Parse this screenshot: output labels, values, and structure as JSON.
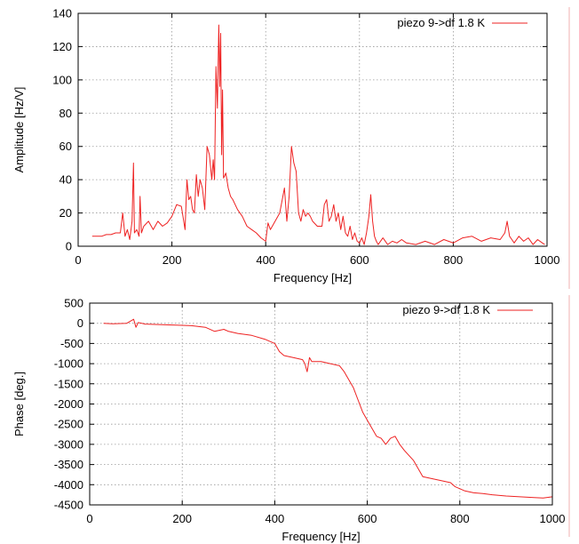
{
  "chart_data": [
    {
      "type": "line",
      "xlabel": "Frequency [Hz]",
      "ylabel": "Amplitude [Hz/V]",
      "xlim": [
        0,
        1000
      ],
      "ylim": [
        0,
        140
      ],
      "xticks": [
        "0",
        "200",
        "400",
        "600",
        "800",
        "1000"
      ],
      "yticks": [
        "0",
        "20",
        "40",
        "60",
        "80",
        "100",
        "120",
        "140"
      ],
      "grid": true,
      "legend_position": "top-right",
      "series": [
        {
          "name": "piezo 9->df 1.8 K",
          "color": "#ee2222",
          "x": [
            30,
            40,
            50,
            60,
            70,
            80,
            90,
            95,
            100,
            105,
            110,
            115,
            118,
            120,
            125,
            130,
            132,
            135,
            140,
            150,
            160,
            170,
            180,
            190,
            200,
            210,
            220,
            228,
            232,
            236,
            240,
            244,
            248,
            252,
            256,
            260,
            265,
            270,
            275,
            280,
            285,
            288,
            291,
            294,
            297,
            300,
            302,
            304,
            306,
            308,
            310,
            312,
            315,
            320,
            325,
            330,
            340,
            350,
            360,
            370,
            380,
            390,
            400,
            405,
            410,
            420,
            430,
            440,
            445,
            450,
            455,
            460,
            465,
            470,
            475,
            480,
            485,
            490,
            495,
            500,
            510,
            520,
            525,
            530,
            535,
            540,
            545,
            550,
            555,
            560,
            565,
            570,
            575,
            580,
            585,
            590,
            595,
            600,
            605,
            610,
            615,
            620,
            624,
            628,
            632,
            636,
            640,
            650,
            660,
            670,
            680,
            690,
            700,
            720,
            740,
            760,
            780,
            800,
            820,
            840,
            860,
            880,
            900,
            910,
            915,
            920,
            925,
            930,
            940,
            950,
            960,
            970,
            980,
            990,
            995
          ],
          "y": [
            6,
            6,
            6,
            7,
            7,
            8,
            8,
            20,
            6,
            10,
            4,
            15,
            50,
            8,
            10,
            6,
            30,
            8,
            12,
            15,
            10,
            15,
            12,
            14,
            18,
            25,
            24,
            10,
            40,
            28,
            30,
            22,
            20,
            43,
            30,
            40,
            35,
            22,
            60,
            55,
            40,
            52,
            40,
            108,
            83,
            133,
            96,
            128,
            55,
            94,
            41,
            42,
            44,
            35,
            30,
            28,
            22,
            18,
            12,
            10,
            8,
            5,
            3,
            14,
            10,
            15,
            20,
            35,
            15,
            30,
            60,
            50,
            45,
            20,
            15,
            22,
            18,
            20,
            18,
            15,
            12,
            12,
            25,
            28,
            15,
            18,
            25,
            15,
            20,
            10,
            18,
            8,
            6,
            12,
            4,
            8,
            3,
            2,
            5,
            1,
            8,
            18,
            31,
            15,
            6,
            3,
            1,
            5,
            1,
            3,
            2,
            4,
            2,
            1,
            3,
            1,
            4,
            2,
            5,
            6,
            3,
            5,
            4,
            8,
            15,
            6,
            4,
            2,
            6,
            3,
            5,
            1,
            4,
            2,
            1
          ]
        }
      ]
    },
    {
      "type": "line",
      "xlabel": "Frequency [Hz]",
      "ylabel": "Phase [deg.]",
      "xlim": [
        0,
        1000
      ],
      "ylim": [
        -4500,
        500
      ],
      "xticks": [
        "0",
        "200",
        "400",
        "600",
        "800",
        "1000"
      ],
      "yticks": [
        "500",
        "0",
        "-500",
        "-1000",
        "-1500",
        "-2000",
        "-2500",
        "-3000",
        "-3500",
        "-4000",
        "-4500"
      ],
      "grid": true,
      "legend_position": "top-right",
      "series": [
        {
          "name": "piezo 9->df 1.8 K",
          "color": "#ee2222",
          "x": [
            30,
            50,
            80,
            95,
            100,
            105,
            120,
            150,
            200,
            220,
            250,
            270,
            290,
            300,
            320,
            350,
            380,
            400,
            410,
            420,
            440,
            460,
            465,
            470,
            475,
            480,
            500,
            520,
            540,
            550,
            560,
            570,
            580,
            590,
            600,
            610,
            620,
            630,
            640,
            650,
            660,
            670,
            680,
            700,
            720,
            740,
            760,
            780,
            790,
            800,
            810,
            830,
            850,
            870,
            900,
            930,
            960,
            980,
            1000
          ],
          "y": [
            0,
            -10,
            0,
            100,
            -100,
            20,
            -20,
            -30,
            -50,
            -60,
            -100,
            -200,
            -150,
            -200,
            -250,
            -300,
            -400,
            -500,
            -700,
            -800,
            -850,
            -900,
            -1000,
            -1200,
            -850,
            -950,
            -950,
            -1000,
            -1050,
            -1200,
            -1400,
            -1600,
            -1900,
            -2200,
            -2400,
            -2600,
            -2800,
            -2850,
            -3000,
            -2850,
            -2800,
            -3000,
            -3150,
            -3400,
            -3800,
            -3850,
            -3900,
            -3950,
            -4050,
            -4100,
            -4150,
            -4200,
            -4220,
            -4250,
            -4280,
            -4300,
            -4320,
            -4330,
            -4300
          ]
        }
      ]
    }
  ]
}
